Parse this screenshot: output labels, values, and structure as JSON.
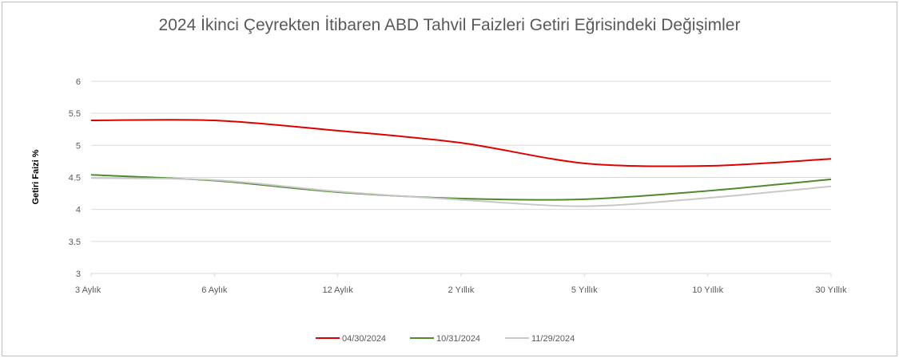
{
  "chart_data": {
    "type": "line",
    "title": "2024 İkinci Çeyrekten İtibaren ABD Tahvil Faizleri Getiri Eğrisindeki Değişimler",
    "ylabel": "Getiri Faizi %",
    "xlabel": "",
    "categories": [
      "3 Aylık",
      "6 Aylık",
      "12 Aylık",
      "2 Yıllık",
      "5 Yıllık",
      "10 Yıllık",
      "30 Yıllık"
    ],
    "ylim": [
      3,
      6
    ],
    "yticks": [
      "3",
      "3.5",
      "4",
      "4.5",
      "5",
      "5.5",
      "6"
    ],
    "grid": true,
    "legend_position": "bottom",
    "series": [
      {
        "name": "04/30/2024",
        "color": "#e00000",
        "values": [
          5.39,
          5.39,
          5.23,
          5.04,
          4.72,
          4.68,
          4.79
        ]
      },
      {
        "name": "10/31/2024",
        "color": "#4e8a2e",
        "values": [
          4.54,
          4.45,
          4.27,
          4.17,
          4.16,
          4.29,
          4.47
        ]
      },
      {
        "name": "11/29/2024",
        "color": "#c8c8c8",
        "values": [
          4.49,
          4.46,
          4.28,
          4.15,
          4.05,
          4.18,
          4.36
        ]
      }
    ]
  }
}
